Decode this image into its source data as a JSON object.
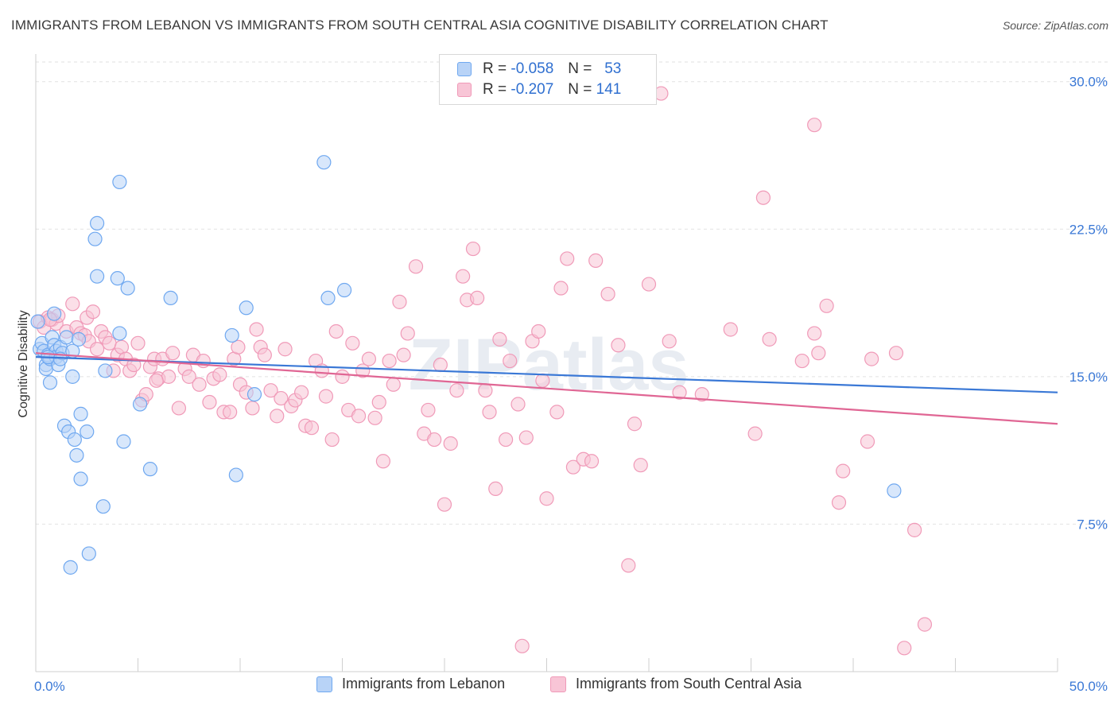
{
  "title": "IMMIGRANTS FROM LEBANON VS IMMIGRANTS FROM SOUTH CENTRAL ASIA COGNITIVE DISABILITY CORRELATION CHART",
  "source": "Source: ZipAtlas.com",
  "watermark": "ZIPatlas",
  "legend": {
    "r_label": "R =",
    "n_label": "N =",
    "rows": [
      {
        "r": "-0.058",
        "n": "53",
        "color": "#6fa8f0",
        "fill": "#b8d3f7"
      },
      {
        "r": "-0.207",
        "n": "141",
        "color": "#f09ab8",
        "fill": "#f8c5d6"
      }
    ]
  },
  "bottom_legend": [
    "Immigrants from Lebanon",
    "Immigrants from South Central Asia"
  ],
  "chart_data": {
    "type": "scatter",
    "title": "IMMIGRANTS FROM LEBANON VS IMMIGRANTS FROM SOUTH CENTRAL ASIA COGNITIVE DISABILITY CORRELATION CHART",
    "xlabel": "",
    "ylabel": "Cognitive Disability",
    "xlim": [
      0,
      50
    ],
    "ylim": [
      0,
      31
    ],
    "x_tick_labels": [
      "0.0%",
      "50.0%"
    ],
    "y_ticks": [
      7.5,
      15.0,
      22.5,
      30.0
    ],
    "y_tick_labels": [
      "7.5%",
      "15.0%",
      "22.5%",
      "30.0%"
    ],
    "grid": true,
    "series": [
      {
        "name": "Immigrants from Lebanon",
        "color": "#3a78d6",
        "fill": "#b8d3f7",
        "stroke": "#6fa8f0",
        "trend": [
          [
            0,
            16.0
          ],
          [
            50,
            14.2
          ]
        ],
        "points": [
          [
            0.1,
            17.8
          ],
          [
            0.2,
            16.4
          ],
          [
            0.3,
            16.7
          ],
          [
            0.4,
            16.3
          ],
          [
            0.5,
            15.6
          ],
          [
            0.5,
            15.4
          ],
          [
            0.6,
            16.1
          ],
          [
            0.7,
            15.9
          ],
          [
            0.8,
            17.0
          ],
          [
            0.9,
            16.6
          ],
          [
            0.7,
            14.7
          ],
          [
            1.0,
            16.3
          ],
          [
            1.0,
            16.0
          ],
          [
            0.9,
            18.2
          ],
          [
            1.1,
            15.6
          ],
          [
            1.2,
            16.5
          ],
          [
            1.3,
            16.2
          ],
          [
            1.5,
            17.0
          ],
          [
            1.8,
            16.3
          ],
          [
            1.8,
            15.0
          ],
          [
            2.1,
            16.9
          ],
          [
            1.4,
            12.5
          ],
          [
            1.6,
            12.2
          ],
          [
            1.9,
            11.8
          ],
          [
            2.0,
            11.0
          ],
          [
            2.2,
            13.1
          ],
          [
            2.2,
            9.8
          ],
          [
            2.5,
            12.2
          ],
          [
            2.6,
            6.0
          ],
          [
            2.9,
            22.0
          ],
          [
            3.0,
            22.8
          ],
          [
            3.0,
            20.1
          ],
          [
            3.3,
            8.4
          ],
          [
            3.4,
            15.3
          ],
          [
            4.0,
            20.0
          ],
          [
            4.1,
            24.9
          ],
          [
            4.1,
            17.2
          ],
          [
            4.3,
            11.7
          ],
          [
            4.5,
            19.5
          ],
          [
            5.1,
            13.6
          ],
          [
            5.6,
            10.3
          ],
          [
            6.6,
            19.0
          ],
          [
            9.6,
            17.1
          ],
          [
            9.8,
            10.0
          ],
          [
            10.3,
            18.5
          ],
          [
            10.7,
            14.1
          ],
          [
            14.1,
            25.9
          ],
          [
            14.3,
            19.0
          ],
          [
            15.1,
            19.4
          ],
          [
            42.0,
            9.2
          ],
          [
            1.7,
            5.3
          ],
          [
            0.6,
            16.0
          ],
          [
            1.2,
            15.9
          ]
        ]
      },
      {
        "name": "Immigrants from South Central Asia",
        "color": "#e06694",
        "fill": "#f8c5d6",
        "stroke": "#f09ab8",
        "trend": [
          [
            0,
            16.2
          ],
          [
            50,
            12.6
          ]
        ],
        "points": [
          [
            0.2,
            17.8
          ],
          [
            0.4,
            17.5
          ],
          [
            0.6,
            18.0
          ],
          [
            0.8,
            17.9
          ],
          [
            1.0,
            17.7
          ],
          [
            1.1,
            18.1
          ],
          [
            1.5,
            17.3
          ],
          [
            1.8,
            18.7
          ],
          [
            2.0,
            17.5
          ],
          [
            2.2,
            17.2
          ],
          [
            2.4,
            17.1
          ],
          [
            2.5,
            18.0
          ],
          [
            2.6,
            16.8
          ],
          [
            2.8,
            18.3
          ],
          [
            3.0,
            16.4
          ],
          [
            3.2,
            17.3
          ],
          [
            3.4,
            17.0
          ],
          [
            3.6,
            16.7
          ],
          [
            3.8,
            15.3
          ],
          [
            4.0,
            16.1
          ],
          [
            4.2,
            16.5
          ],
          [
            4.4,
            15.9
          ],
          [
            4.6,
            15.3
          ],
          [
            4.8,
            15.6
          ],
          [
            5.0,
            16.7
          ],
          [
            5.2,
            13.8
          ],
          [
            5.4,
            14.1
          ],
          [
            5.6,
            15.5
          ],
          [
            5.8,
            15.9
          ],
          [
            6.0,
            14.9
          ],
          [
            6.2,
            15.9
          ],
          [
            6.5,
            15.0
          ],
          [
            6.7,
            16.2
          ],
          [
            7.0,
            13.4
          ],
          [
            7.3,
            15.4
          ],
          [
            7.5,
            15.0
          ],
          [
            7.7,
            16.1
          ],
          [
            8.0,
            14.6
          ],
          [
            8.2,
            15.8
          ],
          [
            8.5,
            13.7
          ],
          [
            8.7,
            14.9
          ],
          [
            9.0,
            15.1
          ],
          [
            9.2,
            13.2
          ],
          [
            9.5,
            13.2
          ],
          [
            9.7,
            15.9
          ],
          [
            9.9,
            16.5
          ],
          [
            10.0,
            14.6
          ],
          [
            10.3,
            14.2
          ],
          [
            10.6,
            13.4
          ],
          [
            10.8,
            17.4
          ],
          [
            11.0,
            16.5
          ],
          [
            11.2,
            16.1
          ],
          [
            11.5,
            14.3
          ],
          [
            11.8,
            13.0
          ],
          [
            12.0,
            13.9
          ],
          [
            12.2,
            16.4
          ],
          [
            12.5,
            13.5
          ],
          [
            12.7,
            13.8
          ],
          [
            13.0,
            14.2
          ],
          [
            13.2,
            12.5
          ],
          [
            13.5,
            12.4
          ],
          [
            13.7,
            15.8
          ],
          [
            14.0,
            15.3
          ],
          [
            14.2,
            14.0
          ],
          [
            14.5,
            11.8
          ],
          [
            14.7,
            17.3
          ],
          [
            15.0,
            15.0
          ],
          [
            15.3,
            13.3
          ],
          [
            15.5,
            16.7
          ],
          [
            15.8,
            13.0
          ],
          [
            16.0,
            15.3
          ],
          [
            16.3,
            15.9
          ],
          [
            16.6,
            12.9
          ],
          [
            16.8,
            13.7
          ],
          [
            17.0,
            10.7
          ],
          [
            17.3,
            15.8
          ],
          [
            17.5,
            14.6
          ],
          [
            17.8,
            18.8
          ],
          [
            18.0,
            16.1
          ],
          [
            18.2,
            17.2
          ],
          [
            18.6,
            20.6
          ],
          [
            19.0,
            12.1
          ],
          [
            19.2,
            13.3
          ],
          [
            19.5,
            11.8
          ],
          [
            19.8,
            15.6
          ],
          [
            20.0,
            8.5
          ],
          [
            20.3,
            11.6
          ],
          [
            20.6,
            14.3
          ],
          [
            20.9,
            20.1
          ],
          [
            21.1,
            18.9
          ],
          [
            21.4,
            21.5
          ],
          [
            21.6,
            19.0
          ],
          [
            22.0,
            14.3
          ],
          [
            22.2,
            13.2
          ],
          [
            22.5,
            9.3
          ],
          [
            22.7,
            16.9
          ],
          [
            23.0,
            11.8
          ],
          [
            23.2,
            15.8
          ],
          [
            23.6,
            13.6
          ],
          [
            24.0,
            11.9
          ],
          [
            24.3,
            16.8
          ],
          [
            24.6,
            17.3
          ],
          [
            24.8,
            14.8
          ],
          [
            25.0,
            8.8
          ],
          [
            25.5,
            13.2
          ],
          [
            25.7,
            19.5
          ],
          [
            26.0,
            21.0
          ],
          [
            26.3,
            10.4
          ],
          [
            26.8,
            10.8
          ],
          [
            27.2,
            10.7
          ],
          [
            27.4,
            20.9
          ],
          [
            28.0,
            19.2
          ],
          [
            28.5,
            16.6
          ],
          [
            29.3,
            12.6
          ],
          [
            29.6,
            10.5
          ],
          [
            30.0,
            19.7
          ],
          [
            30.6,
            29.4
          ],
          [
            31.0,
            16.8
          ],
          [
            31.5,
            14.2
          ],
          [
            32.6,
            14.1
          ],
          [
            34.0,
            17.4
          ],
          [
            35.2,
            12.1
          ],
          [
            35.6,
            24.1
          ],
          [
            35.9,
            16.9
          ],
          [
            37.5,
            15.8
          ],
          [
            38.1,
            17.2
          ],
          [
            38.3,
            16.2
          ],
          [
            38.7,
            18.6
          ],
          [
            39.3,
            8.6
          ],
          [
            39.5,
            10.2
          ],
          [
            40.7,
            11.7
          ],
          [
            40.9,
            15.9
          ],
          [
            42.1,
            16.2
          ],
          [
            43.0,
            7.2
          ],
          [
            23.8,
            1.3
          ],
          [
            29.0,
            5.4
          ],
          [
            42.5,
            1.2
          ],
          [
            43.5,
            2.4
          ],
          [
            38.1,
            27.8
          ],
          [
            0.7,
            17.9
          ],
          [
            5.9,
            14.8
          ]
        ]
      }
    ]
  }
}
